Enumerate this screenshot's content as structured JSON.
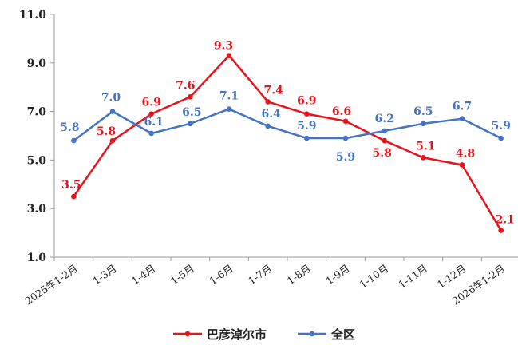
{
  "chart_data": {
    "type": "line",
    "categories": [
      "2025年1-2月",
      "1-3月",
      "1-4月",
      "1-5月",
      "1-6月",
      "1-7月",
      "1-8月",
      "1-9月",
      "1-10月",
      "1-11月",
      "1-12月",
      "2026年1-2月"
    ],
    "ylim": [
      1.0,
      11.0
    ],
    "yticks": [
      "1.0",
      "3.0",
      "5.0",
      "7.0",
      "9.0",
      "11.0"
    ],
    "grid": false,
    "legend_position": "bottom",
    "series": [
      {
        "name": "巴彦淖尔市",
        "color": "#e8131a",
        "values": [
          3.5,
          5.8,
          6.9,
          7.6,
          9.3,
          7.4,
          6.9,
          6.6,
          5.8,
          5.1,
          4.8,
          2.1
        ],
        "labels": [
          "3.5",
          "5.8",
          "6.9",
          "7.6",
          "9.3",
          "7.4",
          "6.9",
          "6.6",
          "5.8",
          "5.1",
          "4.8",
          "2.1"
        ]
      },
      {
        "name": "全区",
        "color": "#4472c4",
        "values": [
          5.8,
          7.0,
          6.1,
          6.5,
          7.1,
          6.4,
          5.9,
          5.9,
          6.2,
          6.5,
          6.7,
          5.9
        ],
        "labels": [
          "5.8",
          "7.0",
          "6.1",
          "6.5",
          "7.1",
          "6.4",
          "5.9",
          "5.9",
          "6.2",
          "6.5",
          "6.7",
          "5.9"
        ]
      }
    ]
  }
}
